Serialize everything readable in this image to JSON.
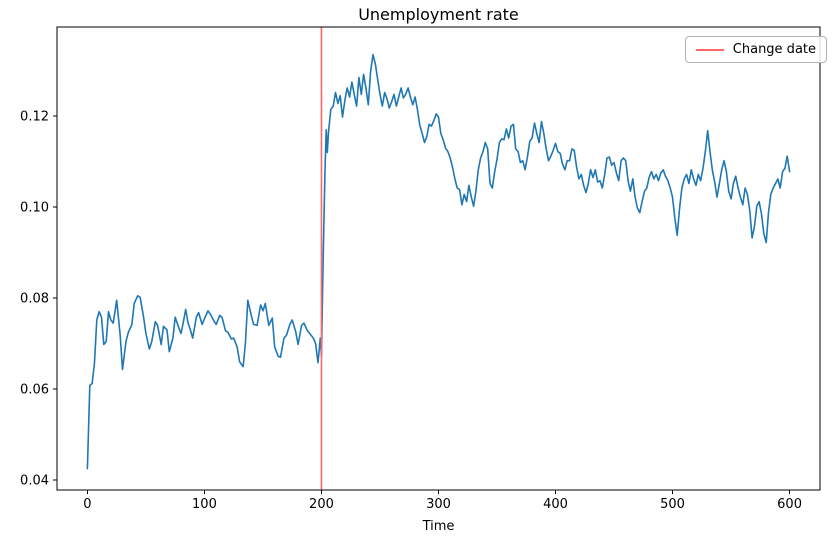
{
  "chart_data": {
    "type": "line",
    "title": "Unemployment rate",
    "xlabel": "Time",
    "ylabel": "",
    "grid": false,
    "xlim": [
      -26,
      626
    ],
    "ylim": [
      0.0378,
      0.1396
    ],
    "xticks": [
      0,
      100,
      200,
      300,
      400,
      500,
      600
    ],
    "yticks": [
      0.04,
      0.06,
      0.08,
      0.1,
      0.12
    ],
    "colors": {
      "series": "#1f77b4",
      "vline": "#ff6666",
      "spine": "#000000"
    },
    "legend": {
      "position": "upper right",
      "entries": [
        {
          "label": "Change date",
          "color": "#ff6666"
        }
      ]
    },
    "annotations": [
      {
        "type": "vline",
        "x": 200,
        "color": "#ff6666"
      }
    ],
    "series": [
      {
        "name": "unemployment-rate",
        "color": "#1f77b4",
        "points": [
          [
            0,
            0.0425
          ],
          [
            2,
            0.0608
          ],
          [
            4,
            0.0612
          ],
          [
            6,
            0.0655
          ],
          [
            8,
            0.0752
          ],
          [
            10,
            0.077
          ],
          [
            12,
            0.0758
          ],
          [
            14,
            0.0698
          ],
          [
            16,
            0.0705
          ],
          [
            18,
            0.077
          ],
          [
            20,
            0.0752
          ],
          [
            22,
            0.0745
          ],
          [
            25,
            0.0795
          ],
          [
            28,
            0.0718
          ],
          [
            30,
            0.0643
          ],
          [
            33,
            0.0705
          ],
          [
            35,
            0.0725
          ],
          [
            38,
            0.0742
          ],
          [
            40,
            0.0788
          ],
          [
            43,
            0.0805
          ],
          [
            45,
            0.0802
          ],
          [
            48,
            0.0758
          ],
          [
            50,
            0.0722
          ],
          [
            53,
            0.0688
          ],
          [
            55,
            0.0705
          ],
          [
            58,
            0.0748
          ],
          [
            60,
            0.074
          ],
          [
            63,
            0.0698
          ],
          [
            65,
            0.0738
          ],
          [
            68,
            0.073
          ],
          [
            70,
            0.0682
          ],
          [
            73,
            0.0712
          ],
          [
            75,
            0.0758
          ],
          [
            78,
            0.0735
          ],
          [
            80,
            0.0722
          ],
          [
            82,
            0.0748
          ],
          [
            84,
            0.0775
          ],
          [
            86,
            0.0745
          ],
          [
            88,
            0.073
          ],
          [
            90,
            0.0712
          ],
          [
            93,
            0.0758
          ],
          [
            95,
            0.0768
          ],
          [
            98,
            0.0742
          ],
          [
            100,
            0.0755
          ],
          [
            103,
            0.0772
          ],
          [
            105,
            0.0765
          ],
          [
            108,
            0.075
          ],
          [
            110,
            0.0742
          ],
          [
            113,
            0.0762
          ],
          [
            115,
            0.0758
          ],
          [
            118,
            0.0728
          ],
          [
            120,
            0.0725
          ],
          [
            123,
            0.071
          ],
          [
            125,
            0.0712
          ],
          [
            128,
            0.0692
          ],
          [
            130,
            0.066
          ],
          [
            133,
            0.0649
          ],
          [
            135,
            0.07
          ],
          [
            137,
            0.0795
          ],
          [
            140,
            0.0762
          ],
          [
            142,
            0.0742
          ],
          [
            145,
            0.074
          ],
          [
            148,
            0.0785
          ],
          [
            150,
            0.0772
          ],
          [
            152,
            0.0788
          ],
          [
            155,
            0.074
          ],
          [
            158,
            0.0756
          ],
          [
            160,
            0.0692
          ],
          [
            163,
            0.0672
          ],
          [
            165,
            0.067
          ],
          [
            168,
            0.0712
          ],
          [
            170,
            0.0718
          ],
          [
            173,
            0.0742
          ],
          [
            175,
            0.0752
          ],
          [
            178,
            0.0726
          ],
          [
            180,
            0.0698
          ],
          [
            183,
            0.074
          ],
          [
            185,
            0.0745
          ],
          [
            188,
            0.0728
          ],
          [
            190,
            0.0722
          ],
          [
            193,
            0.0712
          ],
          [
            195,
            0.07
          ],
          [
            197,
            0.0658
          ],
          [
            199,
            0.0712
          ],
          [
            200,
            0.0672
          ],
          [
            201,
            0.082
          ],
          [
            202,
            0.0955
          ],
          [
            203,
            0.108
          ],
          [
            204,
            0.117
          ],
          [
            205,
            0.112
          ],
          [
            206,
            0.1165
          ],
          [
            208,
            0.1215
          ],
          [
            210,
            0.1222
          ],
          [
            212,
            0.1252
          ],
          [
            214,
            0.1228
          ],
          [
            216,
            0.1245
          ],
          [
            218,
            0.1198
          ],
          [
            220,
            0.1235
          ],
          [
            222,
            0.1262
          ],
          [
            224,
            0.1242
          ],
          [
            226,
            0.1275
          ],
          [
            228,
            0.1248
          ],
          [
            230,
            0.1222
          ],
          [
            232,
            0.1285
          ],
          [
            234,
            0.1248
          ],
          [
            236,
            0.1292
          ],
          [
            238,
            0.1262
          ],
          [
            240,
            0.1225
          ],
          [
            242,
            0.1298
          ],
          [
            244,
            0.1335
          ],
          [
            246,
            0.1315
          ],
          [
            248,
            0.1282
          ],
          [
            250,
            0.1248
          ],
          [
            252,
            0.1222
          ],
          [
            254,
            0.1252
          ],
          [
            256,
            0.1238
          ],
          [
            258,
            0.1218
          ],
          [
            260,
            0.1232
          ],
          [
            262,
            0.1248
          ],
          [
            264,
            0.1222
          ],
          [
            266,
            0.1242
          ],
          [
            268,
            0.1262
          ],
          [
            270,
            0.124
          ],
          [
            272,
            0.1248
          ],
          [
            274,
            0.1262
          ],
          [
            276,
            0.1242
          ],
          [
            278,
            0.1225
          ],
          [
            280,
            0.1242
          ],
          [
            282,
            0.1215
          ],
          [
            284,
            0.118
          ],
          [
            286,
            0.1162
          ],
          [
            288,
            0.1142
          ],
          [
            290,
            0.1155
          ],
          [
            292,
            0.1182
          ],
          [
            294,
            0.1178
          ],
          [
            296,
            0.119
          ],
          [
            298,
            0.1205
          ],
          [
            300,
            0.1198
          ],
          [
            302,
            0.1162
          ],
          [
            304,
            0.1148
          ],
          [
            306,
            0.113
          ],
          [
            308,
            0.1122
          ],
          [
            310,
            0.1108
          ],
          [
            312,
            0.1088
          ],
          [
            314,
            0.1062
          ],
          [
            316,
            0.1042
          ],
          [
            318,
            0.1038
          ],
          [
            320,
            0.1005
          ],
          [
            322,
            0.1028
          ],
          [
            324,
            0.1012
          ],
          [
            326,
            0.1048
          ],
          [
            328,
            0.1022
          ],
          [
            330,
            0.1002
          ],
          [
            332,
            0.1035
          ],
          [
            334,
            0.1082
          ],
          [
            336,
            0.1108
          ],
          [
            338,
            0.1122
          ],
          [
            340,
            0.1142
          ],
          [
            342,
            0.1128
          ],
          [
            344,
            0.1052
          ],
          [
            346,
            0.1042
          ],
          [
            348,
            0.1078
          ],
          [
            350,
            0.1105
          ],
          [
            352,
            0.1142
          ],
          [
            354,
            0.115
          ],
          [
            356,
            0.1148
          ],
          [
            358,
            0.1172
          ],
          [
            360,
            0.1152
          ],
          [
            362,
            0.1178
          ],
          [
            364,
            0.1182
          ],
          [
            366,
            0.1128
          ],
          [
            368,
            0.1122
          ],
          [
            370,
            0.1098
          ],
          [
            372,
            0.1102
          ],
          [
            374,
            0.1082
          ],
          [
            376,
            0.111
          ],
          [
            378,
            0.1145
          ],
          [
            380,
            0.1152
          ],
          [
            382,
            0.1185
          ],
          [
            384,
            0.1162
          ],
          [
            386,
            0.1142
          ],
          [
            388,
            0.1188
          ],
          [
            390,
            0.1162
          ],
          [
            392,
            0.1128
          ],
          [
            394,
            0.1102
          ],
          [
            396,
            0.1112
          ],
          [
            398,
            0.1125
          ],
          [
            400,
            0.114
          ],
          [
            402,
            0.1122
          ],
          [
            404,
            0.1118
          ],
          [
            406,
            0.1095
          ],
          [
            408,
            0.1082
          ],
          [
            410,
            0.1102
          ],
          [
            412,
            0.1102
          ],
          [
            414,
            0.1128
          ],
          [
            416,
            0.1125
          ],
          [
            418,
            0.1088
          ],
          [
            420,
            0.1062
          ],
          [
            422,
            0.1072
          ],
          [
            424,
            0.1048
          ],
          [
            426,
            0.1032
          ],
          [
            428,
            0.1052
          ],
          [
            430,
            0.1082
          ],
          [
            432,
            0.1065
          ],
          [
            434,
            0.1082
          ],
          [
            436,
            0.1055
          ],
          [
            438,
            0.1058
          ],
          [
            440,
            0.1042
          ],
          [
            442,
            0.1072
          ],
          [
            444,
            0.1108
          ],
          [
            446,
            0.111
          ],
          [
            448,
            0.1092
          ],
          [
            450,
            0.1098
          ],
          [
            452,
            0.1075
          ],
          [
            454,
            0.1058
          ],
          [
            456,
            0.1102
          ],
          [
            458,
            0.1108
          ],
          [
            460,
            0.1102
          ],
          [
            462,
            0.1058
          ],
          [
            464,
            0.1035
          ],
          [
            466,
            0.1062
          ],
          [
            468,
            0.1022
          ],
          [
            470,
            0.0998
          ],
          [
            472,
            0.0988
          ],
          [
            474,
            0.1012
          ],
          [
            476,
            0.1035
          ],
          [
            478,
            0.1042
          ],
          [
            480,
            0.1065
          ],
          [
            482,
            0.1078
          ],
          [
            484,
            0.1062
          ],
          [
            486,
            0.1072
          ],
          [
            488,
            0.1058
          ],
          [
            490,
            0.1075
          ],
          [
            492,
            0.1082
          ],
          [
            494,
            0.1068
          ],
          [
            496,
            0.1058
          ],
          [
            498,
            0.1042
          ],
          [
            500,
            0.1022
          ],
          [
            502,
            0.0975
          ],
          [
            504,
            0.0938
          ],
          [
            506,
            0.0998
          ],
          [
            508,
            0.1042
          ],
          [
            510,
            0.1062
          ],
          [
            512,
            0.1072
          ],
          [
            514,
            0.1052
          ],
          [
            516,
            0.1082
          ],
          [
            518,
            0.1062
          ],
          [
            520,
            0.1048
          ],
          [
            522,
            0.1072
          ],
          [
            524,
            0.1058
          ],
          [
            526,
            0.1085
          ],
          [
            528,
            0.1122
          ],
          [
            530,
            0.1168
          ],
          [
            532,
            0.1122
          ],
          [
            534,
            0.1082
          ],
          [
            536,
            0.1055
          ],
          [
            538,
            0.1022
          ],
          [
            540,
            0.1052
          ],
          [
            542,
            0.1082
          ],
          [
            544,
            0.1102
          ],
          [
            546,
            0.1078
          ],
          [
            548,
            0.1035
          ],
          [
            550,
            0.1018
          ],
          [
            552,
            0.1052
          ],
          [
            554,
            0.1068
          ],
          [
            556,
            0.1042
          ],
          [
            558,
            0.1022
          ],
          [
            560,
            0.1005
          ],
          [
            562,
            0.1042
          ],
          [
            564,
            0.1028
          ],
          [
            566,
            0.0992
          ],
          [
            568,
            0.0932
          ],
          [
            570,
            0.0958
          ],
          [
            572,
            0.1002
          ],
          [
            574,
            0.1012
          ],
          [
            576,
            0.0985
          ],
          [
            578,
            0.0942
          ],
          [
            580,
            0.0922
          ],
          [
            582,
            0.0988
          ],
          [
            584,
            0.1028
          ],
          [
            586,
            0.1042
          ],
          [
            588,
            0.1052
          ],
          [
            590,
            0.1062
          ],
          [
            592,
            0.1042
          ],
          [
            594,
            0.1078
          ],
          [
            596,
            0.1085
          ],
          [
            598,
            0.1112
          ],
          [
            600,
            0.1078
          ]
        ]
      }
    ]
  }
}
